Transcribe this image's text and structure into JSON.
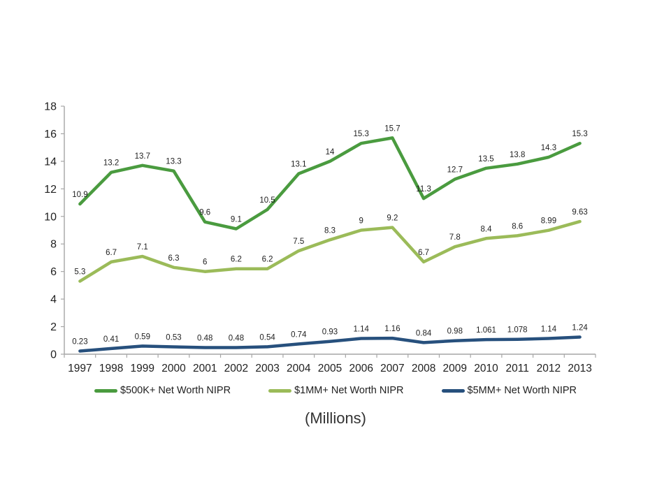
{
  "chart_data": {
    "type": "line",
    "title": "",
    "caption": "(Millions)",
    "categories": [
      "1997",
      "1998",
      "1999",
      "2000",
      "2001",
      "2002",
      "2003",
      "2004",
      "2005",
      "2006",
      "2007",
      "2008",
      "2009",
      "2010",
      "2011",
      "2012",
      "2013"
    ],
    "series": [
      {
        "name": "$500K+ Net Worth NIPR",
        "color": "#4a9b3f",
        "values": [
          10.9,
          13.2,
          13.7,
          13.3,
          9.6,
          9.1,
          10.5,
          13.1,
          14,
          15.3,
          15.7,
          11.3,
          12.7,
          13.5,
          13.8,
          14.3,
          15.3
        ]
      },
      {
        "name": "$1MM+ Net Worth NIPR",
        "color": "#9bbb59",
        "values": [
          5.3,
          6.7,
          7.1,
          6.3,
          6,
          6.2,
          6.2,
          7.5,
          8.3,
          9,
          9.2,
          6.7,
          7.8,
          8.4,
          8.6,
          8.99,
          9.63
        ]
      },
      {
        "name": "$5MM+ Net Worth NIPR",
        "color": "#27507d",
        "values": [
          0.23,
          0.41,
          0.59,
          0.53,
          0.48,
          0.48,
          0.54,
          0.74,
          0.93,
          1.14,
          1.16,
          0.84,
          0.98,
          1.061,
          1.078,
          1.14,
          1.24
        ]
      }
    ],
    "xlabel": "",
    "ylabel": "",
    "ylim": [
      0,
      18
    ],
    "ytick_step": 2,
    "yticks": [
      0,
      2,
      4,
      6,
      8,
      10,
      12,
      14,
      16,
      18
    ],
    "grid": false,
    "data_labels": true,
    "legend_position": "bottom",
    "axis_color": "#a6a6a6",
    "label_color": "#1f1f1f"
  }
}
